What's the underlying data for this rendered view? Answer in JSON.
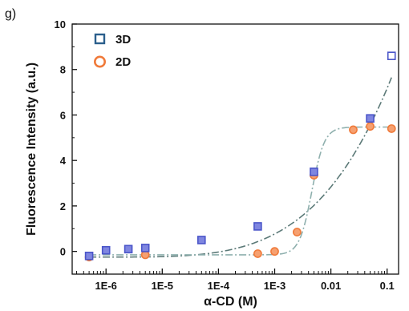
{
  "panel_label": "g)",
  "chart_data": {
    "type": "scatter",
    "xlabel": "α-CD (M)",
    "ylabel": "Fluorescence Intensity (a.u.)",
    "xscale": "log",
    "xlim": [
      2.5e-07,
      0.16
    ],
    "ylim": [
      -1,
      10
    ],
    "x_ticks": [
      1e-06,
      1e-05,
      0.0001,
      0.001,
      0.01,
      0.1
    ],
    "x_tick_labels": [
      "1E-6",
      "1E-5",
      "1E-4",
      "1E-3",
      "0.01",
      "0.1"
    ],
    "y_ticks": [
      0,
      2,
      4,
      6,
      8,
      10
    ],
    "y_tick_labels": [
      "0",
      "2",
      "4",
      "6",
      "8",
      "10"
    ],
    "grid": false,
    "legend_position": "top-left",
    "series": [
      {
        "name": "3D",
        "marker": "square",
        "color": "#2b5f8c",
        "fill": "#4a55c9",
        "x": [
          5e-07,
          1e-06,
          2.5e-06,
          5e-06,
          5e-05,
          0.0005,
          0.005,
          0.05,
          0.12
        ],
        "y": [
          -0.2,
          0.05,
          0.1,
          0.15,
          0.5,
          1.1,
          3.5,
          5.85,
          8.6
        ],
        "fit_color": "#5c7a78"
      },
      {
        "name": "2D",
        "marker": "circle",
        "color": "#f07a3a",
        "fill": "#f07a3a",
        "x": [
          5e-07,
          5e-06,
          0.0005,
          0.001,
          0.0025,
          0.005,
          0.025,
          0.05,
          0.12
        ],
        "y": [
          -0.25,
          -0.15,
          -0.1,
          0.0,
          0.85,
          3.35,
          5.35,
          5.5,
          5.4
        ],
        "fit_color": "#8fb0ae"
      }
    ]
  }
}
